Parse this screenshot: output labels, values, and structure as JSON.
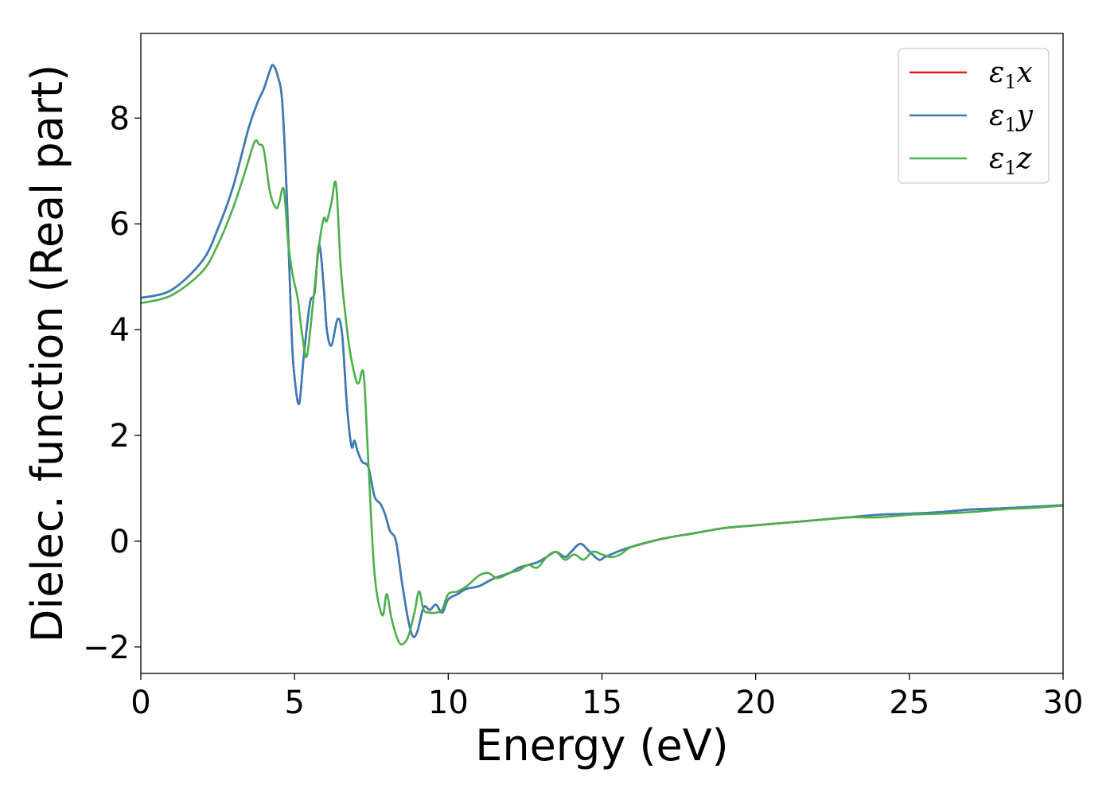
{
  "chart_data": {
    "type": "line",
    "title": "",
    "xlabel": "Energy (eV)",
    "ylabel": "Dielec. function (Real part)",
    "xlim": [
      0,
      30
    ],
    "ylim": [
      -2.5,
      9.6
    ],
    "xticks": [
      0,
      5,
      10,
      15,
      20,
      25,
      30
    ],
    "xtick_labels": [
      "0",
      "5",
      "10",
      "15",
      "20",
      "25",
      "30"
    ],
    "yticks": [
      -2,
      0,
      2,
      4,
      6,
      8
    ],
    "ytick_labels": [
      "−2",
      "0",
      "2",
      "4",
      "6",
      "8"
    ],
    "grid": false,
    "legend_position": "top-right",
    "series": [
      {
        "name": "ε1x",
        "color": "#e41a1c",
        "x": [
          0,
          1,
          2,
          2.5,
          3,
          3.5,
          3.8,
          4.0,
          4.2,
          4.3,
          4.45,
          4.6,
          4.75,
          4.9,
          5.0,
          5.15,
          5.3,
          5.5,
          5.65,
          5.8,
          5.95,
          6.05,
          6.2,
          6.4,
          6.55,
          6.7,
          6.85,
          6.95,
          7.05,
          7.2,
          7.4,
          7.6,
          7.8,
          7.95,
          8.1,
          8.3,
          8.5,
          8.7,
          8.85,
          9.0,
          9.2,
          9.4,
          9.6,
          9.8,
          10.0,
          10.3,
          10.6,
          11.0,
          11.5,
          12.0,
          12.3,
          12.6,
          12.9,
          13.2,
          13.5,
          13.8,
          14.0,
          14.3,
          14.6,
          14.9,
          15.1,
          15.5,
          16.0,
          17.0,
          18.0,
          19.0,
          20.0,
          21.0,
          22.0,
          23.0,
          24.0,
          25.0,
          26.0,
          27.0,
          28.0,
          29.0,
          30.0
        ],
        "y": [
          4.6,
          4.75,
          5.3,
          5.9,
          6.7,
          7.8,
          8.3,
          8.55,
          8.9,
          9.0,
          8.8,
          8.3,
          6.5,
          4.0,
          3.1,
          2.6,
          3.5,
          4.5,
          4.7,
          5.6,
          4.8,
          4.0,
          3.7,
          4.2,
          3.9,
          2.6,
          1.8,
          1.9,
          1.7,
          1.5,
          1.4,
          0.85,
          0.7,
          0.5,
          0.2,
          0.0,
          -0.8,
          -1.5,
          -1.8,
          -1.7,
          -1.25,
          -1.3,
          -1.2,
          -1.35,
          -1.1,
          -1.0,
          -0.9,
          -0.85,
          -0.7,
          -0.6,
          -0.5,
          -0.45,
          -0.4,
          -0.3,
          -0.2,
          -0.3,
          -0.2,
          -0.05,
          -0.2,
          -0.35,
          -0.3,
          -0.2,
          -0.1,
          0.05,
          0.15,
          0.25,
          0.3,
          0.35,
          0.4,
          0.45,
          0.5,
          0.52,
          0.55,
          0.6,
          0.62,
          0.65,
          0.68
        ]
      },
      {
        "name": "ε1y",
        "color": "#377eb8",
        "x": [
          0,
          1,
          2,
          2.5,
          3,
          3.5,
          3.8,
          4.0,
          4.2,
          4.3,
          4.45,
          4.6,
          4.75,
          4.9,
          5.0,
          5.15,
          5.3,
          5.5,
          5.65,
          5.8,
          5.95,
          6.05,
          6.2,
          6.4,
          6.55,
          6.7,
          6.85,
          6.95,
          7.05,
          7.2,
          7.4,
          7.6,
          7.8,
          7.95,
          8.1,
          8.3,
          8.5,
          8.7,
          8.85,
          9.0,
          9.2,
          9.4,
          9.6,
          9.8,
          10.0,
          10.3,
          10.6,
          11.0,
          11.5,
          12.0,
          12.3,
          12.6,
          12.9,
          13.2,
          13.5,
          13.8,
          14.0,
          14.3,
          14.6,
          14.9,
          15.1,
          15.5,
          16.0,
          17.0,
          18.0,
          19.0,
          20.0,
          21.0,
          22.0,
          23.0,
          24.0,
          25.0,
          26.0,
          27.0,
          28.0,
          29.0,
          30.0
        ],
        "y": [
          4.6,
          4.75,
          5.3,
          5.9,
          6.7,
          7.8,
          8.3,
          8.55,
          8.9,
          9.0,
          8.8,
          8.3,
          6.5,
          4.0,
          3.1,
          2.6,
          3.5,
          4.5,
          4.7,
          5.6,
          4.8,
          4.0,
          3.7,
          4.2,
          3.9,
          2.6,
          1.8,
          1.9,
          1.7,
          1.5,
          1.4,
          0.85,
          0.7,
          0.5,
          0.2,
          0.0,
          -0.8,
          -1.5,
          -1.8,
          -1.7,
          -1.25,
          -1.3,
          -1.2,
          -1.35,
          -1.1,
          -1.0,
          -0.9,
          -0.85,
          -0.7,
          -0.6,
          -0.5,
          -0.45,
          -0.4,
          -0.3,
          -0.2,
          -0.3,
          -0.2,
          -0.05,
          -0.2,
          -0.35,
          -0.3,
          -0.2,
          -0.1,
          0.05,
          0.15,
          0.25,
          0.3,
          0.35,
          0.4,
          0.45,
          0.5,
          0.52,
          0.55,
          0.6,
          0.62,
          0.65,
          0.68
        ]
      },
      {
        "name": "ε1z",
        "color": "#4daf4a",
        "x": [
          0,
          1,
          2,
          2.5,
          3,
          3.4,
          3.7,
          3.85,
          4.0,
          4.2,
          4.4,
          4.5,
          4.65,
          4.8,
          4.95,
          5.1,
          5.25,
          5.4,
          5.6,
          5.8,
          5.95,
          6.05,
          6.2,
          6.35,
          6.5,
          6.65,
          6.8,
          7.0,
          7.1,
          7.25,
          7.4,
          7.6,
          7.85,
          8.0,
          8.15,
          8.35,
          8.5,
          8.7,
          8.9,
          9.05,
          9.2,
          9.4,
          9.6,
          9.8,
          10.0,
          10.3,
          10.6,
          11.0,
          11.3,
          11.6,
          12.0,
          12.3,
          12.6,
          12.9,
          13.2,
          13.5,
          13.8,
          14.1,
          14.4,
          14.7,
          15.0,
          15.3,
          15.6,
          16.0,
          17.0,
          18.0,
          19.0,
          20.0,
          21.0,
          22.0,
          23.0,
          24.0,
          25.0,
          26.0,
          27.0,
          28.0,
          29.0,
          30.0
        ],
        "y": [
          4.5,
          4.65,
          5.1,
          5.6,
          6.3,
          7.0,
          7.55,
          7.5,
          7.4,
          6.6,
          6.3,
          6.4,
          6.65,
          5.6,
          5.0,
          4.6,
          3.9,
          3.5,
          4.5,
          5.6,
          6.1,
          6.05,
          6.4,
          6.75,
          5.2,
          4.3,
          3.6,
          3.05,
          3.0,
          3.15,
          1.5,
          -0.6,
          -1.4,
          -1.0,
          -1.45,
          -1.85,
          -1.95,
          -1.8,
          -1.35,
          -0.95,
          -1.3,
          -1.35,
          -1.35,
          -1.3,
          -1.0,
          -0.95,
          -0.85,
          -0.65,
          -0.6,
          -0.7,
          -0.6,
          -0.55,
          -0.45,
          -0.5,
          -0.3,
          -0.2,
          -0.35,
          -0.25,
          -0.35,
          -0.2,
          -0.25,
          -0.3,
          -0.25,
          -0.1,
          0.05,
          0.15,
          0.25,
          0.3,
          0.35,
          0.4,
          0.45,
          0.45,
          0.5,
          0.52,
          0.55,
          0.6,
          0.63,
          0.67
        ]
      }
    ]
  }
}
